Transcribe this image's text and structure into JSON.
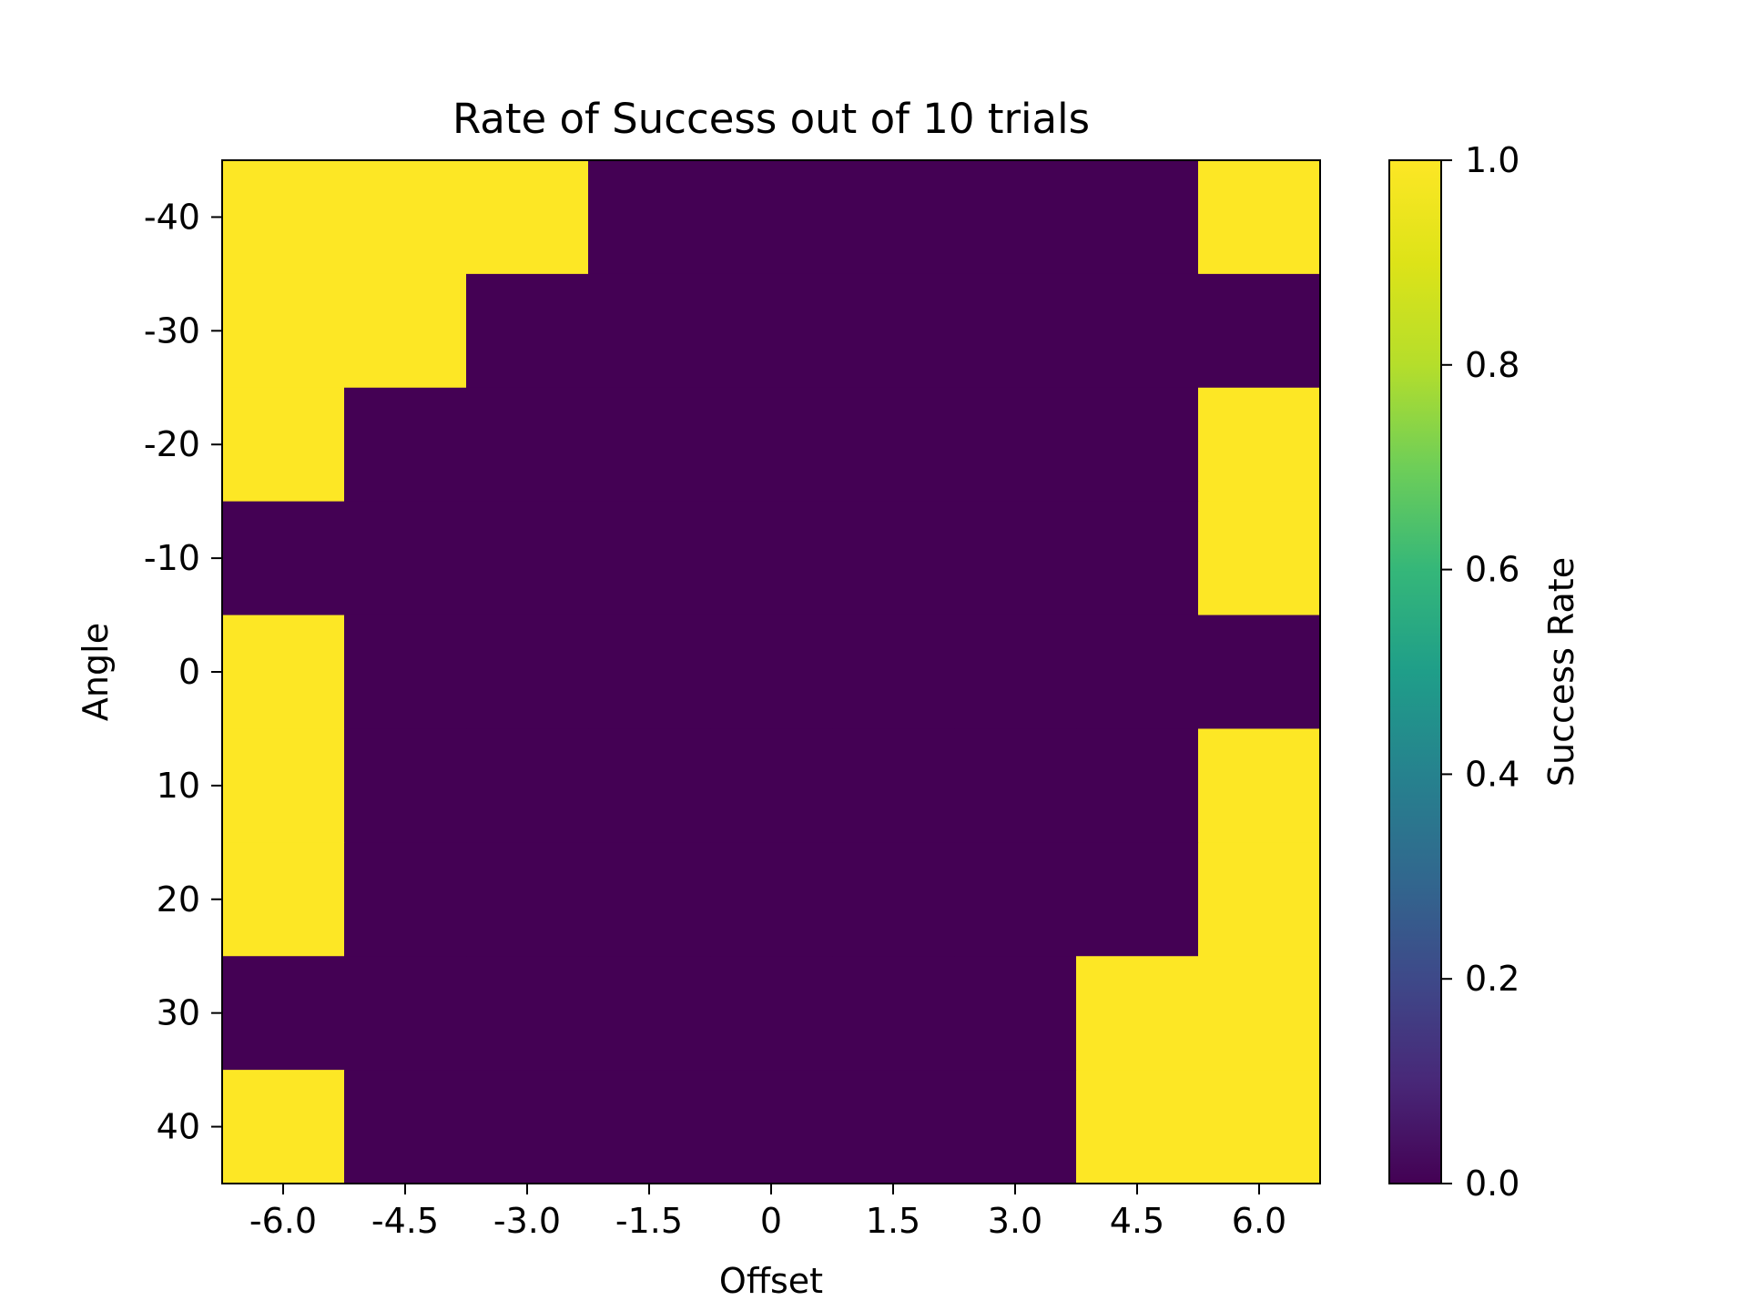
{
  "chart_data": {
    "type": "heatmap",
    "title": "Rate of Success out of 10 trials",
    "xlabel": "Offset",
    "ylabel": "Angle",
    "x_categories": [
      "-6.0",
      "-4.5",
      "-3.0",
      "-1.5",
      "0",
      "1.5",
      "3.0",
      "4.5",
      "6.0"
    ],
    "y_categories": [
      "-40",
      "-30",
      "-20",
      "-10",
      "0",
      "10",
      "20",
      "30",
      "40"
    ],
    "values": [
      [
        1,
        1,
        1,
        0,
        0,
        0,
        0,
        0,
        1
      ],
      [
        1,
        1,
        0,
        0,
        0,
        0,
        0,
        0,
        0
      ],
      [
        1,
        0,
        0,
        0,
        0,
        0,
        0,
        0,
        1
      ],
      [
        0,
        0,
        0,
        0,
        0,
        0,
        0,
        0,
        1
      ],
      [
        1,
        0,
        0,
        0,
        0,
        0,
        0,
        0,
        0
      ],
      [
        1,
        0,
        0,
        0,
        0,
        0,
        0,
        0,
        1
      ],
      [
        1,
        0,
        0,
        0,
        0,
        0,
        0,
        0,
        1
      ],
      [
        0,
        0,
        0,
        0,
        0,
        0,
        0,
        1,
        1
      ],
      [
        1,
        0,
        0,
        0,
        0,
        0,
        0,
        1,
        1
      ]
    ],
    "colorbar": {
      "label": "Success Rate",
      "range": [
        0.0,
        1.0
      ],
      "ticks": [
        "0.0",
        "0.2",
        "0.4",
        "0.6",
        "0.8",
        "1.0"
      ],
      "colormap": "viridis"
    },
    "colors": {
      "low": "#440154",
      "high": "#fde725"
    },
    "grid": false
  }
}
